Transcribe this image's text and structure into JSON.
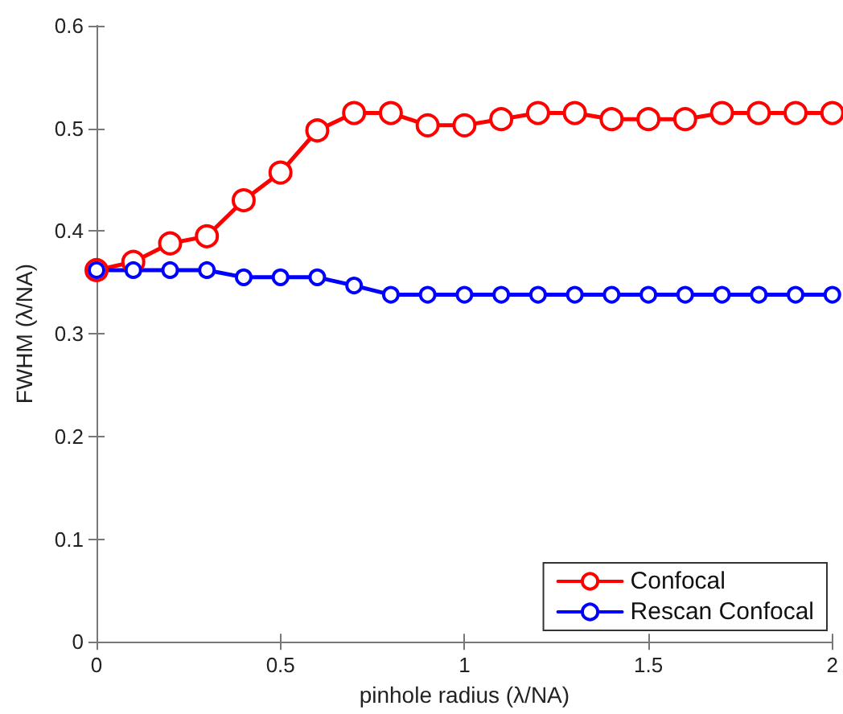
{
  "chart_data": {
    "type": "line",
    "xlabel": "pinhole radius (λ/NA)",
    "ylabel": "FWHM (λ/NA)",
    "x": [
      0,
      0.1,
      0.2,
      0.3,
      0.4,
      0.5,
      0.6,
      0.7,
      0.8,
      0.9,
      1.0,
      1.1,
      1.2,
      1.3,
      1.4,
      1.5,
      1.6,
      1.7,
      1.8,
      1.9,
      2.0
    ],
    "series": [
      {
        "name": "Confocal",
        "color": "#ff0000",
        "values": [
          0.362,
          0.37,
          0.388,
          0.395,
          0.43,
          0.457,
          0.498,
          0.515,
          0.515,
          0.503,
          0.503,
          0.509,
          0.515,
          0.515,
          0.509,
          0.509,
          0.509,
          0.515,
          0.515,
          0.515,
          0.515
        ]
      },
      {
        "name": "Rescan Confocal",
        "color": "#0000ff",
        "values": [
          0.362,
          0.362,
          0.362,
          0.362,
          0.355,
          0.355,
          0.355,
          0.347,
          0.338,
          0.338,
          0.338,
          0.338,
          0.338,
          0.338,
          0.338,
          0.338,
          0.338,
          0.338,
          0.338,
          0.338,
          0.338
        ]
      }
    ],
    "xlim": [
      0,
      2
    ],
    "xticks": [
      0,
      0.5,
      1,
      1.5,
      2
    ],
    "ylim": [
      0,
      0.6
    ],
    "yticks": [
      0,
      0.1,
      0.2,
      0.3,
      0.4,
      0.5,
      0.6
    ],
    "grid": false,
    "legend": "bottom right",
    "marker": "circle",
    "line_style": "solid"
  }
}
